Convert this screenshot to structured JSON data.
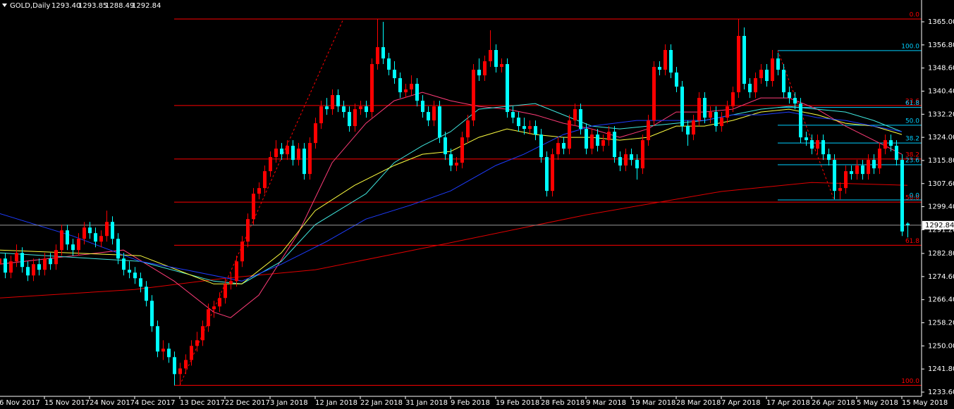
{
  "chart_data": {
    "type": "candlestick",
    "title": "GOLD,Daily",
    "title_values": [
      "1293.40",
      "1293.85",
      "1288.49",
      "1292.84"
    ],
    "up_color": "#ff0000",
    "down_color": "#00ffff",
    "open": [
      1279,
      1281,
      1276,
      1280,
      1283,
      1278,
      1275,
      1279,
      1277,
      1281,
      1279,
      1284,
      1291,
      1286,
      1284,
      1288,
      1292,
      1290,
      1287,
      1289,
      1294,
      1288,
      1281,
      1277,
      1276,
      1274,
      1271,
      1266,
      1257,
      1248,
      1249,
      1246,
      1240,
      1242,
      1245,
      1250,
      1252,
      1257,
      1263,
      1264,
      1267,
      1272,
      1273,
      1280,
      1287,
      1295,
      1304,
      1306,
      1312,
      1317,
      1320,
      1318,
      1321,
      1316,
      1320,
      1311,
      1322,
      1329,
      1335,
      1334,
      1339,
      1335,
      1333,
      1328,
      1334,
      1335,
      1333,
      1350,
      1356,
      1352,
      1348,
      1345,
      1340,
      1341,
      1343,
      1337,
      1333,
      1330,
      1335,
      1324,
      1318,
      1314,
      1315,
      1324,
      1330,
      1348,
      1346,
      1351,
      1355,
      1349,
      1350,
      1333,
      1331,
      1328,
      1327,
      1328,
      1325,
      1317,
      1305,
      1318,
      1322,
      1320,
      1330,
      1334,
      1327,
      1320,
      1325,
      1321,
      1323,
      1326,
      1317,
      1314,
      1318,
      1316,
      1313,
      1323,
      1330,
      1349,
      1348,
      1355,
      1347,
      1342,
      1328,
      1325,
      1330,
      1338,
      1331,
      1333,
      1328,
      1331,
      1335,
      1340,
      1360,
      1343,
      1340,
      1345,
      1348,
      1344,
      1352,
      1348,
      1340,
      1338,
      1336,
      1324,
      1323,
      1320,
      1323,
      1318,
      1316,
      1305,
      1306,
      1312,
      1311,
      1314,
      1311,
      1316,
      1313,
      1320,
      1323,
      1321,
      1316,
      1293.4
    ],
    "high": [
      1284,
      1283,
      1282,
      1286,
      1285,
      1280,
      1281,
      1281,
      1283,
      1283,
      1286,
      1293,
      1293,
      1288,
      1290,
      1294,
      1294,
      1292,
      1291,
      1298,
      1296,
      1290,
      1283,
      1280,
      1278,
      1276,
      1273,
      1268,
      1259,
      1252,
      1251,
      1248,
      1244,
      1247,
      1252,
      1255,
      1259,
      1265,
      1266,
      1269,
      1274,
      1276,
      1282,
      1289,
      1297,
      1306,
      1308,
      1314,
      1319,
      1323,
      1322,
      1323,
      1323,
      1322,
      1322,
      1324,
      1331,
      1337,
      1338,
      1341,
      1341,
      1337,
      1335,
      1336,
      1337,
      1337,
      1352,
      1366,
      1365,
      1354,
      1351,
      1347,
      1343,
      1346,
      1345,
      1339,
      1335,
      1337,
      1337,
      1326,
      1320,
      1317,
      1326,
      1332,
      1350,
      1352,
      1353,
      1362,
      1357,
      1352,
      1352,
      1335,
      1333,
      1331,
      1330,
      1330,
      1327,
      1319,
      1320,
      1324,
      1324,
      1332,
      1336,
      1336,
      1329,
      1327,
      1327,
      1325,
      1328,
      1328,
      1319,
      1320,
      1320,
      1318,
      1325,
      1332,
      1351,
      1351,
      1357,
      1357,
      1349,
      1344,
      1330,
      1332,
      1340,
      1340,
      1335,
      1335,
      1333,
      1337,
      1342,
      1366,
      1363,
      1345,
      1347,
      1350,
      1350,
      1355,
      1354,
      1350,
      1342,
      1340,
      1338,
      1326,
      1325,
      1325,
      1325,
      1320,
      1318,
      1308,
      1314,
      1314,
      1316,
      1316,
      1318,
      1318,
      1322,
      1325,
      1325,
      1323,
      1318,
      1293.85
    ],
    "low": [
      1277,
      1274,
      1274,
      1278,
      1276,
      1273,
      1273,
      1275,
      1275,
      1277,
      1277,
      1282,
      1284,
      1282,
      1282,
      1286,
      1288,
      1285,
      1285,
      1287,
      1286,
      1279,
      1275,
      1274,
      1272,
      1269,
      1264,
      1255,
      1246,
      1245,
      1244,
      1236,
      1236,
      1240,
      1243,
      1248,
      1250,
      1255,
      1260,
      1262,
      1265,
      1270,
      1271,
      1278,
      1285,
      1293,
      1302,
      1304,
      1310,
      1315,
      1316,
      1316,
      1314,
      1314,
      1309,
      1309,
      1320,
      1327,
      1332,
      1332,
      1333,
      1331,
      1326,
      1326,
      1332,
      1331,
      1331,
      1348,
      1350,
      1346,
      1343,
      1338,
      1338,
      1339,
      1335,
      1331,
      1328,
      1328,
      1322,
      1316,
      1312,
      1312,
      1313,
      1322,
      1328,
      1344,
      1344,
      1349,
      1347,
      1347,
      1331,
      1329,
      1326,
      1325,
      1325,
      1323,
      1315,
      1303,
      1303,
      1316,
      1318,
      1318,
      1328,
      1325,
      1318,
      1318,
      1319,
      1319,
      1321,
      1315,
      1312,
      1312,
      1314,
      1309,
      1311,
      1321,
      1328,
      1346,
      1346,
      1345,
      1340,
      1326,
      1321,
      1323,
      1328,
      1329,
      1329,
      1326,
      1326,
      1329,
      1333,
      1338,
      1341,
      1338,
      1338,
      1343,
      1342,
      1342,
      1346,
      1338,
      1336,
      1334,
      1322,
      1321,
      1318,
      1318,
      1316,
      1314,
      1302,
      1302,
      1304,
      1309,
      1309,
      1309,
      1309,
      1311,
      1311,
      1318,
      1319,
      1314,
      1289,
      1288.49
    ],
    "close": [
      1281,
      1276,
      1280,
      1283,
      1278,
      1275,
      1279,
      1277,
      1281,
      1279,
      1284,
      1291,
      1286,
      1284,
      1288,
      1292,
      1290,
      1287,
      1289,
      1294,
      1288,
      1281,
      1277,
      1276,
      1274,
      1271,
      1266,
      1257,
      1248,
      1249,
      1246,
      1240,
      1242,
      1245,
      1250,
      1252,
      1257,
      1263,
      1264,
      1267,
      1272,
      1273,
      1280,
      1287,
      1295,
      1304,
      1306,
      1312,
      1317,
      1320,
      1318,
      1321,
      1316,
      1320,
      1311,
      1322,
      1329,
      1335,
      1334,
      1339,
      1335,
      1333,
      1328,
      1334,
      1335,
      1333,
      1350,
      1356,
      1352,
      1348,
      1345,
      1340,
      1341,
      1343,
      1337,
      1333,
      1330,
      1335,
      1324,
      1318,
      1314,
      1315,
      1324,
      1330,
      1348,
      1346,
      1351,
      1355,
      1349,
      1350,
      1333,
      1331,
      1328,
      1327,
      1328,
      1325,
      1317,
      1305,
      1318,
      1322,
      1320,
      1330,
      1334,
      1327,
      1320,
      1325,
      1321,
      1323,
      1326,
      1317,
      1314,
      1318,
      1316,
      1313,
      1323,
      1330,
      1349,
      1348,
      1355,
      1347,
      1342,
      1328,
      1325,
      1330,
      1338,
      1331,
      1333,
      1328,
      1331,
      1335,
      1340,
      1360,
      1343,
      1340,
      1345,
      1348,
      1344,
      1352,
      1348,
      1340,
      1338,
      1336,
      1324,
      1323,
      1320,
      1323,
      1318,
      1316,
      1305,
      1306,
      1312,
      1311,
      1314,
      1311,
      1316,
      1313,
      1320,
      1323,
      1321,
      1316,
      1290.6,
      1292.84
    ],
    "series": [
      {
        "color": "#e00000",
        "x": [
          0,
          24,
          40,
          56,
          80,
          104,
          128,
          144,
          161
        ],
        "values": [
          1267,
          1270,
          1274,
          1277,
          1286.6,
          1296.5,
          1304.8,
          1308,
          1307
        ]
      },
      {
        "color": "#ff3c78",
        "x": [
          0,
          22,
          31,
          38,
          41,
          46,
          53,
          59,
          65,
          70,
          75,
          80,
          85,
          90,
          95,
          100,
          105,
          110,
          115,
          120,
          125,
          130,
          135,
          140,
          145,
          150,
          155,
          160
        ],
        "values": [
          1279,
          1284,
          1273,
          1262,
          1260,
          1268,
          1290,
          1315,
          1329,
          1337,
          1340,
          1337,
          1335,
          1334,
          1332,
          1329,
          1327,
          1324,
          1327,
          1333,
          1333,
          1334,
          1338,
          1338,
          1334,
          1328,
          1323,
          1318
        ]
      },
      {
        "color": "#40e8e0",
        "x": [
          0,
          25,
          38,
          43,
          50,
          56,
          65,
          70,
          75,
          80,
          85,
          90,
          95,
          100,
          105,
          110,
          115,
          120,
          125,
          130,
          135,
          140,
          145,
          150,
          155,
          160
        ],
        "values": [
          1283,
          1280,
          1273,
          1272,
          1280,
          1293,
          1304,
          1315,
          1321,
          1326,
          1334,
          1335,
          1336,
          1332,
          1328,
          1327,
          1328,
          1329,
          1330,
          1332,
          1334,
          1335,
          1334,
          1333,
          1330,
          1326
        ]
      },
      {
        "color": "#ffff40",
        "x": [
          0,
          25,
          38,
          43,
          50,
          56,
          63,
          70,
          75,
          80,
          85,
          90,
          95,
          100,
          105,
          110,
          115,
          120,
          125,
          130,
          135,
          140,
          145,
          150,
          155,
          160
        ],
        "values": [
          1284,
          1282,
          1272,
          1272,
          1283,
          1298,
          1307,
          1314,
          1318,
          1319,
          1324,
          1327,
          1325,
          1324,
          1324,
          1323,
          1324,
          1328,
          1328,
          1330,
          1333,
          1334,
          1332,
          1329,
          1328,
          1325
        ]
      },
      {
        "color": "#1e3cff",
        "x": [
          0,
          13,
          25,
          33,
          43,
          50,
          58,
          65,
          73,
          80,
          88,
          93,
          100,
          105,
          113,
          120,
          125,
          130,
          135,
          140,
          145,
          150,
          155,
          160
        ],
        "values": [
          1297,
          1289,
          1280,
          1277,
          1273,
          1279,
          1287,
          1295,
          1300,
          1305,
          1314,
          1318,
          1325,
          1328,
          1330,
          1330,
          1330,
          1332,
          1332,
          1333,
          1331,
          1330,
          1328,
          1326
        ]
      }
    ],
    "levels": [
      {
        "color": "#ff0000",
        "x_start": 31,
        "lines": [
          {
            "value": 1366,
            "label": "0.0"
          },
          {
            "value": 1335.3,
            "label": "23.6"
          },
          {
            "value": 1316.3,
            "label": "38.2"
          },
          {
            "value": 1301,
            "label": "50.0"
          },
          {
            "value": 1285.7,
            "label": "61.8"
          },
          {
            "value": 1236,
            "label": "100.0"
          }
        ]
      },
      {
        "color": "#00d0ff",
        "x_start": 138,
        "lines": [
          {
            "value": 1354.8,
            "label": "100.0"
          },
          {
            "value": 1334.6,
            "label": "61.8"
          },
          {
            "value": 1328.3,
            "label": "50.0"
          },
          {
            "value": 1322,
            "label": "38.2"
          },
          {
            "value": 1314.3,
            "label": "23.6"
          },
          {
            "value": 1301.8,
            "label": "0.0"
          }
        ]
      }
    ],
    "trend_lines": [
      {
        "color": "#ff0000",
        "x": [
          32,
          61
        ],
        "y": [
          1236,
          1366
        ]
      },
      {
        "color": "#ff0000",
        "x": [
          138,
          148
        ],
        "y": [
          1354.8,
          1301.8
        ]
      }
    ],
    "last_price": {
      "value": 1292.84,
      "label": "1292.84"
    },
    "xlim": [
      0.125,
      163.5
    ],
    "ylim": [
      1232.1,
      1372.74
    ],
    "xticks": [
      {
        "value": 0,
        "label": "6 Nov 2017"
      },
      {
        "value": 8,
        "label": "15 Nov 2017"
      },
      {
        "value": 16,
        "label": "24 Nov 2017"
      },
      {
        "value": 24,
        "label": "4 Dec 2017"
      },
      {
        "value": 32,
        "label": "13 Dec 2017"
      },
      {
        "value": 40,
        "label": "22 Dec 2017"
      },
      {
        "value": 48,
        "label": "3 Jan 2018"
      },
      {
        "value": 56,
        "label": "12 Jan 2018"
      },
      {
        "value": 64,
        "label": "22 Jan 2018"
      },
      {
        "value": 72,
        "label": "31 Jan 2018"
      },
      {
        "value": 80,
        "label": "9 Feb 2018"
      },
      {
        "value": 88,
        "label": "19 Feb 2018"
      },
      {
        "value": 96,
        "label": "28 Feb 2018"
      },
      {
        "value": 104,
        "label": "9 Mar 2018"
      },
      {
        "value": 112,
        "label": "19 Mar 2018"
      },
      {
        "value": 120,
        "label": "28 Mar 2018"
      },
      {
        "value": 128,
        "label": "7 Apr 2018"
      },
      {
        "value": 136,
        "label": "17 Apr 2018"
      },
      {
        "value": 144,
        "label": "26 Apr 2018"
      },
      {
        "value": 152,
        "label": "5 May 2018"
      },
      {
        "value": 160,
        "label": "15 May 2018"
      }
    ],
    "yticks": [
      {
        "value": 1365,
        "label": "1365.00"
      },
      {
        "value": 1356.8,
        "label": "1356.80"
      },
      {
        "value": 1348.6,
        "label": "1348.60"
      },
      {
        "value": 1340.4,
        "label": "1340.40"
      },
      {
        "value": 1332.2,
        "label": "1332.20"
      },
      {
        "value": 1324,
        "label": "1324.00"
      },
      {
        "value": 1315.8,
        "label": "1315.80"
      },
      {
        "value": 1307.6,
        "label": "1307.60"
      },
      {
        "value": 1299.4,
        "label": "1299.40"
      },
      {
        "value": 1291.2,
        "label": "1291.20"
      },
      {
        "value": 1282.8,
        "label": "1282.80"
      },
      {
        "value": 1274.6,
        "label": "1274.60"
      },
      {
        "value": 1266.4,
        "label": "1266.40"
      },
      {
        "value": 1258.2,
        "label": "1258.20"
      },
      {
        "value": 1250,
        "label": "1250.00"
      },
      {
        "value": 1241.8,
        "label": "1241.80"
      },
      {
        "value": 1233.6,
        "label": "1233.60"
      }
    ]
  }
}
